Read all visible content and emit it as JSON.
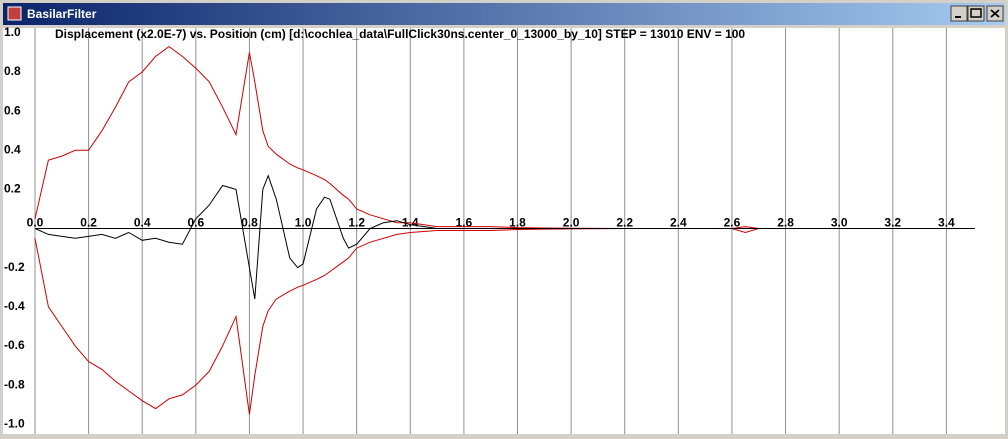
{
  "window": {
    "title": "BasilarFilter"
  },
  "chart_data": {
    "type": "line",
    "title": "Displacement (x2.0E-7) vs. Position (cm) [d:\\cochlea_data\\FullClick30ns.center_0_13000_by_10] STEP = 13010 ENV = 100",
    "x": [
      0,
      0.05,
      0.1,
      0.15,
      0.2,
      0.25,
      0.3,
      0.35,
      0.4,
      0.45,
      0.5,
      0.55,
      0.6,
      0.65,
      0.7,
      0.75,
      0.8,
      0.82,
      0.85,
      0.87,
      0.9,
      0.95,
      0.98,
      1.0,
      1.05,
      1.08,
      1.1,
      1.15,
      1.17,
      1.2,
      1.25,
      1.3,
      1.35,
      1.4,
      1.5,
      1.6,
      1.7,
      1.8,
      1.9,
      2.0,
      2.2,
      2.4,
      2.6,
      2.65,
      2.7,
      2.8,
      3.0,
      3.2,
      3.4,
      3.5
    ],
    "series": [
      {
        "color": "#cc0000",
        "values": [
          0.05,
          0.35,
          0.37,
          0.4,
          0.4,
          0.5,
          0.62,
          0.75,
          0.8,
          0.88,
          0.93,
          0.88,
          0.82,
          0.75,
          0.62,
          0.48,
          0.9,
          0.75,
          0.5,
          0.42,
          0.38,
          0.33,
          0.31,
          0.3,
          0.27,
          0.25,
          0.23,
          0.17,
          0.15,
          0.1,
          0.07,
          0.05,
          0.03,
          0.03,
          0.01,
          0.01,
          0.01,
          0.005,
          0.003,
          0.002,
          0,
          0,
          0,
          0.01,
          0,
          0,
          0,
          0,
          0,
          0
        ]
      },
      {
        "color": "#cc0000",
        "values": [
          -0.05,
          -0.4,
          -0.5,
          -0.6,
          -0.68,
          -0.72,
          -0.78,
          -0.83,
          -0.88,
          -0.92,
          -0.87,
          -0.85,
          -0.8,
          -0.73,
          -0.6,
          -0.45,
          -0.95,
          -0.75,
          -0.5,
          -0.42,
          -0.36,
          -0.32,
          -0.3,
          -0.29,
          -0.26,
          -0.24,
          -0.22,
          -0.17,
          -0.15,
          -0.1,
          -0.07,
          -0.05,
          -0.03,
          -0.02,
          -0.01,
          -0.01,
          -0.01,
          -0.005,
          -0.003,
          -0.002,
          0,
          0,
          0,
          -0.02,
          0,
          0,
          0,
          0,
          0,
          0
        ]
      },
      {
        "color": "#000000",
        "values": [
          0,
          -0.03,
          -0.04,
          -0.05,
          -0.04,
          -0.03,
          -0.05,
          -0.02,
          -0.06,
          -0.05,
          -0.07,
          -0.08,
          0.05,
          0.12,
          0.22,
          0.2,
          -0.2,
          -0.36,
          0.2,
          0.27,
          0.15,
          -0.15,
          -0.2,
          -0.18,
          0.1,
          0.16,
          0.15,
          -0.05,
          -0.1,
          -0.08,
          0,
          0.03,
          0.04,
          0.02,
          0,
          0,
          0,
          0,
          0,
          0,
          0,
          0,
          0,
          0,
          0,
          0,
          0,
          0,
          0,
          0
        ]
      }
    ],
    "xlim": [
      0,
      3.6
    ],
    "ylim": [
      -1.05,
      1.03
    ],
    "xticks": [
      {
        "value": 0,
        "label": "0.0"
      },
      0.2,
      0.4,
      0.6,
      0.8,
      {
        "value": 1,
        "label": "1.0"
      },
      1.2,
      1.4,
      1.6,
      1.8,
      {
        "value": 2,
        "label": "2.0"
      },
      2.2,
      2.4,
      2.6,
      2.8,
      {
        "value": 3,
        "label": "3.0"
      },
      3.2,
      3.4
    ],
    "yticks": [
      {
        "value": 1,
        "label": "1.0"
      },
      0.8,
      0.6,
      0.4,
      0.2,
      -0.2,
      -0.4,
      -0.6,
      -0.8,
      {
        "value": -1,
        "label": "-1.0"
      }
    ],
    "grid": true
  }
}
